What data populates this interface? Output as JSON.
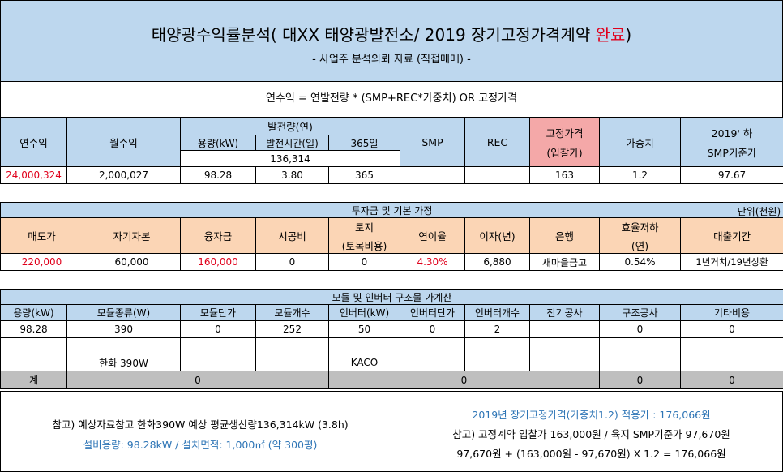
{
  "title": {
    "main": "태양광수익률분석( 대XX 태양광발전소/ 2019 장기고정가격계약 ",
    "highlight": "완료",
    "close": ")",
    "subtitle": "- 사업주 분석의뢰 자료 (직접매매) -"
  },
  "formula": "연수익 = 연발전량 * (SMP+REC*가중치) OR 고정가격",
  "revenue_table": {
    "headers": {
      "annual": "연수익",
      "monthly": "월수익",
      "generation": "발전량(연)",
      "capacity": "용량(kW)",
      "hours": "발전시간(일)",
      "days": "365일",
      "smp": "SMP",
      "rec": "REC",
      "fixed_line1": "고정가격",
      "fixed_line2": "(입찰가)",
      "weight": "가중치",
      "smp_h_line1": "2019' 하",
      "smp_h_line2": "SMP기준가"
    },
    "generation_total": "136,314",
    "row": {
      "annual": "24,000,324",
      "monthly": "2,000,027",
      "capacity": "98.28",
      "hours": "3.80",
      "days": "365",
      "smp": "",
      "rec": "",
      "fixed": "163",
      "weight": "1.2",
      "smp_h": "97.67"
    }
  },
  "investment_table": {
    "title": "투자금 및 기본 가정",
    "unit": "단위(천원)",
    "headers": {
      "sale": "매도가",
      "equity": "자기자본",
      "loan": "융자금",
      "construction": "시공비",
      "land_line1": "토지",
      "land_line2": "(토목비용)",
      "rate": "연이율",
      "interest": "이자(년)",
      "bank": "은행",
      "degradation_line1": "효율저하",
      "degradation_line2": "(연)",
      "loan_period": "대출기간"
    },
    "row": {
      "sale": "220,000",
      "equity": "60,000",
      "loan": "160,000",
      "construction": "0",
      "land": "0",
      "rate": "4.30%",
      "interest": "6,880",
      "bank": "새마을금고",
      "degradation": "0.54%",
      "loan_period": "1년거치/19년상환"
    }
  },
  "module_table": {
    "title": "모듈 및 인버터 구조물 가계산",
    "headers": [
      "용량(kW)",
      "모듈종류(W)",
      "모듈단가",
      "모듈개수",
      "인버터(kW)",
      "인버터단가",
      "인버터개수",
      "전기공사",
      "구조공사",
      "기타비용"
    ],
    "row1": [
      "98.28",
      "390",
      "0",
      "252",
      "50",
      "0",
      "2",
      "",
      "0",
      "0"
    ],
    "module_brand": "한화 390W",
    "inverter_brand": "KACO",
    "total_label": "계",
    "total_module": "0",
    "total_inverter": "0",
    "total_structure": "0",
    "total_other": "0"
  },
  "notes": {
    "left_line1": "참고) 예상자료참고 한화390W 예상 평균생산량136,314kW (3.8h)",
    "left_line2": "설비용량: 98.28kW / 설치면적: 1,000㎡ (약 300평)",
    "right_line1": "2019년 장기고정가격(가중치1.2) 적용가 : 176,066원",
    "right_line2": "참고) 고정계약 입찰가 163,000원 / 육지 SMP기준가 97,670원",
    "right_line3": "97,670원 + (163,000원 - 97,670원) X 1.2 = 176,066원"
  },
  "colors": {
    "header_blue": "#bdd7ee",
    "header_peach": "#fbd5b5",
    "header_pink": "#f4a8a8",
    "total_grey": "#bfbfbf",
    "highlight_red": "#e0001b",
    "note_blue": "#2e75b6"
  }
}
